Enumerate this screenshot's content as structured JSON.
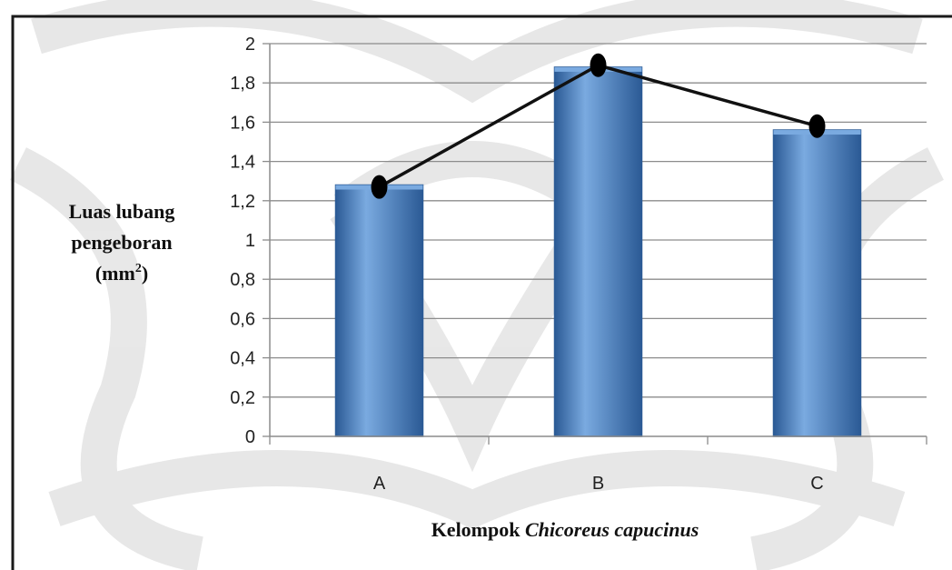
{
  "chart_data": {
    "type": "bar",
    "categories": [
      "A",
      "B",
      "C"
    ],
    "values": [
      1.28,
      1.88,
      1.56
    ],
    "line_values": [
      1.27,
      1.89,
      1.58
    ],
    "ylim": [
      0,
      2
    ],
    "yticks": [
      "0",
      "0,2",
      "0,4",
      "0,6",
      "0,8",
      "1",
      "1,2",
      "1,4",
      "1,6",
      "1,8",
      "2"
    ],
    "ylabel_lines": [
      "Luas lubang",
      "pengeboran",
      "(mm",
      "2",
      ")"
    ],
    "xlabel_plain": "Kelompok ",
    "xlabel_italic": "Chicoreus capucinus",
    "grid": true,
    "colors": {
      "bar": "#4f81bd",
      "bar_light": "#7aaae0",
      "bar_dark": "#2b5a95",
      "line": "#111111",
      "marker": "#000000",
      "grid": "#8c8c8c",
      "watermark": "#d8d8d8"
    }
  }
}
